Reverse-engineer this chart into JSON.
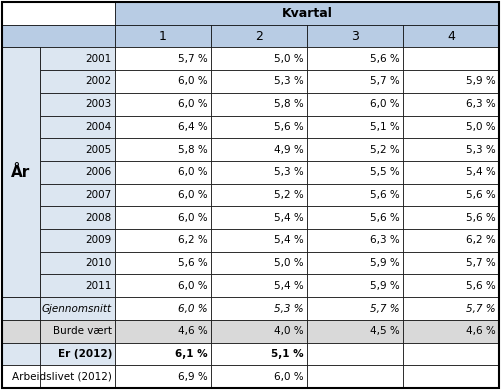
{
  "header_kvartal": "Kvartal",
  "col_headers": [
    "1",
    "2",
    "3",
    "4"
  ],
  "row_label_main": "År",
  "rows": [
    {
      "label": "2001",
      "values": [
        "5,7 %",
        "5,0 %",
        "5,6 %",
        ""
      ],
      "style": "normal",
      "italic": false,
      "bold": false
    },
    {
      "label": "2002",
      "values": [
        "6,0 %",
        "5,3 %",
        "5,7 %",
        "5,9 %"
      ],
      "style": "normal",
      "italic": false,
      "bold": false
    },
    {
      "label": "2003",
      "values": [
        "6,0 %",
        "5,8 %",
        "6,0 %",
        "6,3 %"
      ],
      "style": "normal",
      "italic": false,
      "bold": false
    },
    {
      "label": "2004",
      "values": [
        "6,4 %",
        "5,6 %",
        "5,1 %",
        "5,0 %"
      ],
      "style": "normal",
      "italic": false,
      "bold": false
    },
    {
      "label": "2005",
      "values": [
        "5,8 %",
        "4,9 %",
        "5,2 %",
        "5,3 %"
      ],
      "style": "normal",
      "italic": false,
      "bold": false
    },
    {
      "label": "2006",
      "values": [
        "6,0 %",
        "5,3 %",
        "5,5 %",
        "5,4 %"
      ],
      "style": "normal",
      "italic": false,
      "bold": false
    },
    {
      "label": "2007",
      "values": [
        "6,0 %",
        "5,2 %",
        "5,6 %",
        "5,6 %"
      ],
      "style": "normal",
      "italic": false,
      "bold": false
    },
    {
      "label": "2008",
      "values": [
        "6,0 %",
        "5,4 %",
        "5,6 %",
        "5,6 %"
      ],
      "style": "normal",
      "italic": false,
      "bold": false
    },
    {
      "label": "2009",
      "values": [
        "6,2 %",
        "5,4 %",
        "6,3 %",
        "6,2 %"
      ],
      "style": "normal",
      "italic": false,
      "bold": false
    },
    {
      "label": "2010",
      "values": [
        "5,6 %",
        "5,0 %",
        "5,9 %",
        "5,7 %"
      ],
      "style": "normal",
      "italic": false,
      "bold": false
    },
    {
      "label": "2011",
      "values": [
        "6,0 %",
        "5,4 %",
        "5,9 %",
        "5,6 %"
      ],
      "style": "normal",
      "italic": false,
      "bold": false
    },
    {
      "label": "Gjennomsnitt",
      "values": [
        "6,0 %",
        "5,3 %",
        "5,7 %",
        "5,7 %"
      ],
      "style": "italic",
      "italic": true,
      "bold": false
    },
    {
      "label": "Burde vært",
      "values": [
        "4,6 %",
        "4,0 %",
        "4,5 %",
        "4,6 %"
      ],
      "style": "gray",
      "italic": false,
      "bold": false
    },
    {
      "label": "Er (2012)",
      "values": [
        "6,1 %",
        "5,1 %",
        "",
        ""
      ],
      "style": "bold",
      "italic": false,
      "bold": true
    },
    {
      "label": "Arbeidslivet (2012)",
      "values": [
        "6,9 %",
        "6,0 %",
        "",
        ""
      ],
      "style": "normal",
      "italic": false,
      "bold": false
    }
  ],
  "n_year_rows": 11,
  "color_header_bg": "#b8cce4",
  "color_row_label_bg": "#dce6f1",
  "color_gray_row_bg": "#d9d9d9",
  "color_white": "#ffffff",
  "color_border": "#000000"
}
